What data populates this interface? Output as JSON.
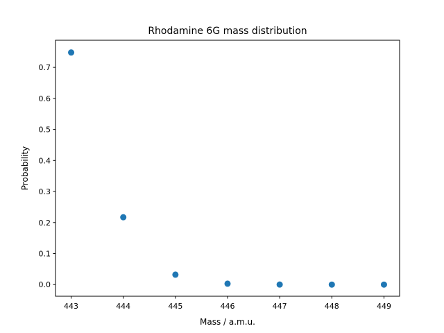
{
  "chart_data": {
    "type": "scatter",
    "title": "Rhodamine 6G mass distribution",
    "xlabel": "Mass / a.m.u.",
    "ylabel": "Probability",
    "xlim": [
      442.7,
      449.3
    ],
    "ylim": [
      -0.0375,
      0.7875
    ],
    "xticks": [
      443,
      444,
      445,
      446,
      447,
      448,
      449
    ],
    "xtick_labels": [
      "443",
      "444",
      "445",
      "446",
      "447",
      "448",
      "449"
    ],
    "yticks": [
      0.0,
      0.1,
      0.2,
      0.3,
      0.4,
      0.5,
      0.6,
      0.7
    ],
    "ytick_labels": [
      "0.0",
      "0.1",
      "0.2",
      "0.3",
      "0.4",
      "0.5",
      "0.6",
      "0.7"
    ],
    "grid": false,
    "series": [
      {
        "x": [
          443,
          444,
          445,
          446,
          447,
          448,
          449
        ],
        "y": [
          0.748,
          0.217,
          0.032,
          0.003,
          0.0002,
          1e-05,
          0.0
        ],
        "color": "#1f77b4"
      }
    ]
  }
}
